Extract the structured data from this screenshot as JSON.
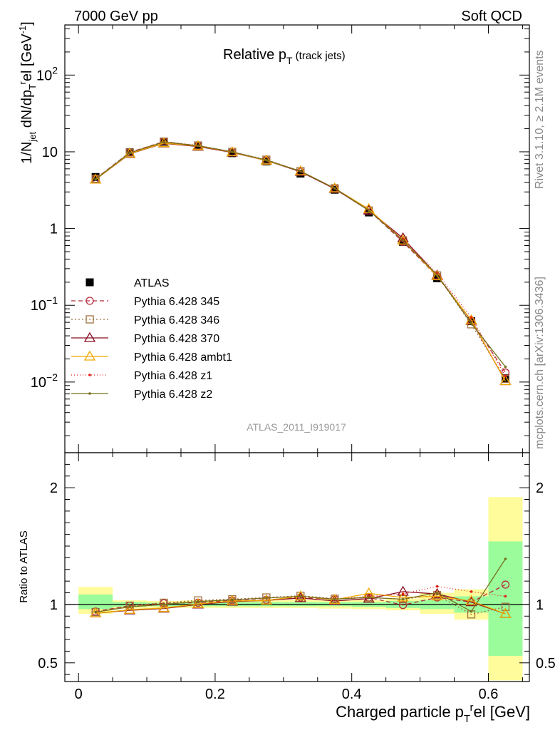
{
  "header": {
    "left": "7000 GeV pp",
    "right": "Soft QCD"
  },
  "title": {
    "main": "Relative p",
    "sub": "T",
    "suffix": " (track jets)"
  },
  "side": {
    "rivet": "Rivet 3.1.10, ≥ 2.1M events",
    "mcplots": "mcplots.cern.ch [arXiv:1306.3436]"
  },
  "analysis_id": "ATLAS_2011_I919017",
  "axes": {
    "ylabel_top": "1/N_jet dN/dp_T^rel [GeV^-1]",
    "ylabel_bottom": "Ratio to ATLAS",
    "xlabel": "Charged particle p_T^rel [GeV]"
  },
  "chart_data": [
    {
      "type": "line",
      "panel": "main",
      "yscale": "log",
      "xlim": [
        -0.02,
        0.66
      ],
      "ylim": [
        0.0012,
        450
      ],
      "x": [
        0.025,
        0.075,
        0.125,
        0.175,
        0.225,
        0.275,
        0.325,
        0.375,
        0.425,
        0.475,
        0.525,
        0.575,
        0.625
      ],
      "x_tick_labels": [
        "0",
        "0.2",
        "0.4",
        "0.6"
      ],
      "y_tick_labels": [
        "10^-2",
        "10^-1",
        "1",
        "10",
        "10^2"
      ],
      "legend_position": "middle-left",
      "series": [
        {
          "name": "ATLAS",
          "color": "#000000",
          "marker": "filled-square",
          "dash": "",
          "values": [
            4.7,
            9.9,
            13.4,
            11.7,
            9.6,
            7.5,
            5.2,
            3.2,
            1.62,
            0.67,
            0.225,
            0.062,
            0.0112
          ]
        },
        {
          "name": "Pythia 6.428 345",
          "color": "#b52c3b",
          "marker": "open-circle",
          "dash": "6,4",
          "values": [
            4.45,
            9.85,
            13.6,
            11.9,
            9.9,
            7.8,
            5.5,
            3.35,
            1.72,
            0.67,
            0.238,
            0.063,
            0.0133
          ]
        },
        {
          "name": "Pythia 6.428 346",
          "color": "#a0703e",
          "marker": "open-square",
          "dash": "2,3",
          "values": [
            4.45,
            9.8,
            13.6,
            12.1,
            10.0,
            7.9,
            5.6,
            3.35,
            1.72,
            0.7,
            0.245,
            0.0565,
            0.011
          ]
        },
        {
          "name": "Pythia 6.428 370",
          "color": "#8a0d22",
          "marker": "open-triangle",
          "dash": "",
          "values": [
            4.35,
            9.4,
            12.9,
            11.7,
            9.8,
            7.7,
            5.5,
            3.3,
            1.72,
            0.75,
            0.245,
            0.063,
            0.0103
          ]
        },
        {
          "name": "Pythia 6.428 ambt1",
          "color": "#f0a800",
          "marker": "open-triangle",
          "dash": "",
          "values": [
            4.35,
            9.5,
            13.0,
            11.9,
            9.9,
            7.7,
            5.6,
            3.35,
            1.8,
            0.7,
            0.24,
            0.064,
            0.0103
          ]
        },
        {
          "name": "Pythia 6.428 z1",
          "color": "#e0201a",
          "marker": "dot",
          "dash": "1,3",
          "values": [
            4.4,
            9.8,
            13.5,
            12.0,
            10.0,
            7.8,
            5.6,
            3.35,
            1.74,
            0.73,
            0.262,
            0.069,
            0.012
          ]
        },
        {
          "name": "Pythia 6.428 z2",
          "color": "#76701c",
          "marker": "dot",
          "dash": "",
          "values": [
            4.4,
            9.7,
            13.4,
            12.0,
            10.0,
            7.8,
            5.6,
            3.35,
            1.72,
            0.7,
            0.248,
            0.058,
            0.0158
          ]
        }
      ]
    },
    {
      "type": "line",
      "panel": "ratio",
      "xlim": [
        -0.02,
        0.66
      ],
      "ylim": [
        0.34,
        2.3
      ],
      "y_tick_labels": [
        "0.5",
        "1",
        "2"
      ],
      "reference_line": 1.0,
      "bands": {
        "bin_edges": [
          0.0,
          0.05,
          0.1,
          0.15,
          0.2,
          0.25,
          0.3,
          0.35,
          0.4,
          0.45,
          0.5,
          0.55,
          0.6,
          0.65
        ],
        "total_uncertainty": [
          [
            0.92,
            1.15
          ],
          [
            0.965,
            1.035
          ],
          [
            0.97,
            1.03
          ],
          [
            0.97,
            1.035
          ],
          [
            0.97,
            1.035
          ],
          [
            0.97,
            1.035
          ],
          [
            0.97,
            1.04
          ],
          [
            0.965,
            1.035
          ],
          [
            0.96,
            1.04
          ],
          [
            0.95,
            1.05
          ],
          [
            0.92,
            1.1
          ],
          [
            0.87,
            1.13
          ],
          [
            0.35,
            1.92
          ]
        ],
        "stat_uncertainty": [
          [
            0.96,
            1.085
          ],
          [
            0.98,
            1.02
          ],
          [
            0.985,
            1.015
          ],
          [
            0.985,
            1.02
          ],
          [
            0.985,
            1.02
          ],
          [
            0.985,
            1.02
          ],
          [
            0.985,
            1.02
          ],
          [
            0.985,
            1.02
          ],
          [
            0.98,
            1.02
          ],
          [
            0.97,
            1.03
          ],
          [
            0.96,
            1.04
          ],
          [
            0.93,
            1.07
          ],
          [
            0.56,
            1.54
          ]
        ],
        "total_color": "#fffc9b",
        "stat_color": "#9bfc9b"
      },
      "series": [
        {
          "name": "Pythia 6.428 345",
          "values": [
            0.94,
            0.99,
            1.01,
            1.015,
            1.035,
            1.04,
            1.06,
            1.045,
            1.06,
            0.995,
            1.06,
            1.02,
            1.17
          ]
        },
        {
          "name": "Pythia 6.428 346",
          "values": [
            0.935,
            0.99,
            1.015,
            1.035,
            1.045,
            1.06,
            1.075,
            1.05,
            1.06,
            1.045,
            1.08,
            0.915,
            0.98
          ]
        },
        {
          "name": "Pythia 6.428 370",
          "values": [
            0.925,
            0.95,
            0.965,
            1.0,
            1.025,
            1.035,
            1.055,
            1.03,
            1.05,
            1.11,
            1.09,
            1.02,
            0.92
          ]
        },
        {
          "name": "Pythia 6.428 ambt1",
          "values": [
            0.925,
            0.955,
            0.97,
            1.005,
            1.03,
            1.035,
            1.07,
            1.04,
            1.095,
            1.06,
            1.07,
            1.03,
            0.92
          ]
        },
        {
          "name": "Pythia 6.428 z1",
          "values": [
            0.935,
            0.985,
            1.005,
            1.025,
            1.04,
            1.055,
            1.07,
            1.045,
            1.07,
            1.09,
            1.155,
            1.11,
            1.07
          ]
        },
        {
          "name": "Pythia 6.428 z2",
          "values": [
            0.935,
            0.98,
            1.0,
            1.025,
            1.04,
            1.055,
            1.07,
            1.045,
            1.06,
            1.045,
            1.1,
            0.94,
            1.39
          ]
        }
      ]
    }
  ]
}
